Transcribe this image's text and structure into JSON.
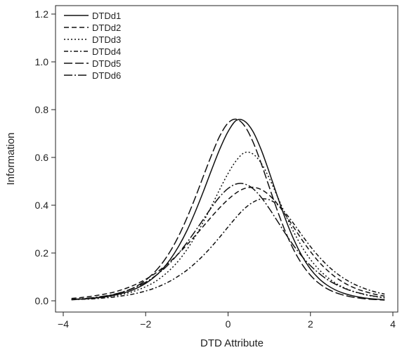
{
  "chart_data": {
    "type": "line",
    "title": "",
    "xlabel": "DTD Attribute",
    "ylabel": "Information",
    "xlim": [
      -4,
      4
    ],
    "ylim": [
      0,
      1.2
    ],
    "xticks": [
      -4,
      -2,
      0,
      2,
      4
    ],
    "xtick_labels": [
      "−4",
      "−2",
      "0",
      "2",
      "4"
    ],
    "yticks": [
      0.0,
      0.2,
      0.4,
      0.6,
      0.8,
      1.0,
      1.2
    ],
    "ytick_labels": [
      "0.0",
      "0.2",
      "0.4",
      "0.6",
      "0.8",
      "1.0",
      "1.2"
    ],
    "grid": false,
    "legend_position": "top-left",
    "x": [
      -3.8,
      -3.6,
      -3.4,
      -3.2,
      -3.0,
      -2.8,
      -2.6,
      -2.4,
      -2.2,
      -2.0,
      -1.8,
      -1.6,
      -1.4,
      -1.2,
      -1.0,
      -0.8,
      -0.6,
      -0.4,
      -0.2,
      0.0,
      0.2,
      0.4,
      0.6,
      0.8,
      1.0,
      1.2,
      1.4,
      1.6,
      1.8,
      2.0,
      2.2,
      2.4,
      2.6,
      2.8,
      3.0,
      3.2,
      3.4,
      3.6,
      3.8
    ],
    "series": [
      {
        "name": "DTDd1",
        "dash": "solid",
        "values": [
          0.005,
          0.007,
          0.009,
          0.012,
          0.016,
          0.022,
          0.03,
          0.04,
          0.054,
          0.073,
          0.098,
          0.131,
          0.174,
          0.228,
          0.293,
          0.371,
          0.457,
          0.548,
          0.635,
          0.708,
          0.755,
          0.752,
          0.71,
          0.634,
          0.538,
          0.436,
          0.339,
          0.255,
          0.186,
          0.133,
          0.094,
          0.066,
          0.046,
          0.032,
          0.022,
          0.015,
          0.01,
          0.007,
          0.005
        ]
      },
      {
        "name": "DTDd2",
        "dash": "dash",
        "values": [
          0.01,
          0.013,
          0.017,
          0.022,
          0.028,
          0.035,
          0.045,
          0.057,
          0.072,
          0.09,
          0.111,
          0.136,
          0.165,
          0.198,
          0.234,
          0.272,
          0.312,
          0.352,
          0.39,
          0.424,
          0.452,
          0.47,
          0.475,
          0.466,
          0.442,
          0.405,
          0.358,
          0.306,
          0.254,
          0.206,
          0.164,
          0.129,
          0.1,
          0.077,
          0.059,
          0.045,
          0.035,
          0.026,
          0.02
        ]
      },
      {
        "name": "DTDd3",
        "dash": "dot",
        "values": [
          0.005,
          0.007,
          0.009,
          0.012,
          0.015,
          0.02,
          0.026,
          0.034,
          0.045,
          0.059,
          0.077,
          0.101,
          0.131,
          0.168,
          0.214,
          0.268,
          0.33,
          0.397,
          0.467,
          0.533,
          0.587,
          0.62,
          0.615,
          0.577,
          0.513,
          0.436,
          0.358,
          0.286,
          0.224,
          0.173,
          0.132,
          0.1,
          0.075,
          0.056,
          0.042,
          0.031,
          0.023,
          0.017,
          0.012
        ]
      },
      {
        "name": "DTDd4",
        "dash": "dashdot",
        "values": [
          0.004,
          0.006,
          0.007,
          0.009,
          0.012,
          0.015,
          0.02,
          0.025,
          0.032,
          0.041,
          0.052,
          0.066,
          0.083,
          0.104,
          0.128,
          0.157,
          0.19,
          0.227,
          0.267,
          0.309,
          0.35,
          0.386,
          0.412,
          0.426,
          0.423,
          0.402,
          0.366,
          0.321,
          0.273,
          0.227,
          0.186,
          0.15,
          0.12,
          0.095,
          0.075,
          0.059,
          0.046,
          0.036,
          0.028
        ]
      },
      {
        "name": "DTDd5",
        "dash": "longdash",
        "values": [
          0.005,
          0.007,
          0.01,
          0.013,
          0.018,
          0.025,
          0.034,
          0.046,
          0.063,
          0.086,
          0.117,
          0.157,
          0.208,
          0.271,
          0.346,
          0.43,
          0.521,
          0.61,
          0.69,
          0.744,
          0.76,
          0.732,
          0.667,
          0.577,
          0.476,
          0.376,
          0.286,
          0.211,
          0.152,
          0.107,
          0.074,
          0.051,
          0.035,
          0.024,
          0.016,
          0.011,
          0.007,
          0.005,
          0.003
        ]
      },
      {
        "name": "DTDd6",
        "dash": "longdashdot",
        "values": [
          0.006,
          0.008,
          0.011,
          0.015,
          0.02,
          0.026,
          0.035,
          0.046,
          0.06,
          0.078,
          0.1,
          0.127,
          0.16,
          0.199,
          0.243,
          0.291,
          0.341,
          0.391,
          0.436,
          0.47,
          0.489,
          0.489,
          0.47,
          0.434,
          0.386,
          0.333,
          0.279,
          0.229,
          0.185,
          0.147,
          0.116,
          0.09,
          0.07,
          0.054,
          0.041,
          0.032,
          0.024,
          0.018,
          0.014
        ]
      }
    ]
  }
}
